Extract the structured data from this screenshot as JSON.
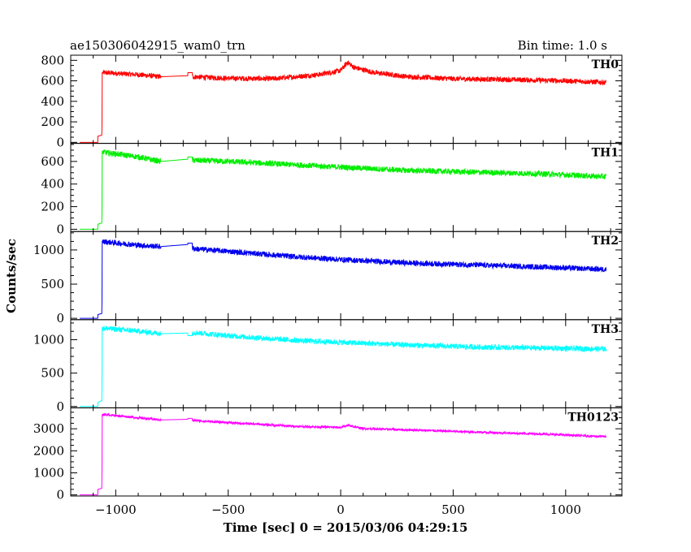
{
  "header": {
    "title": "ae150306042915_wam0_trn",
    "bin_time": "Bin time: 1.0 s"
  },
  "axes": {
    "xlabel": "Time [sec] 0 = 2015/03/06 04:29:15",
    "ylabel": "Counts/sec"
  },
  "chart_data": {
    "type": "line",
    "title": "ae150306042915_wam0_trn",
    "xlabel": "Time [sec] 0 = 2015/03/06 04:29:15",
    "ylabel": "Counts/sec",
    "xlim": [
      -1200,
      1250
    ],
    "xticks": [
      -1000,
      -500,
      0,
      500,
      1000
    ],
    "grid": false,
    "series": [
      {
        "name": "TH0",
        "color": "#ff0000",
        "ylim": [
          -10,
          850
        ],
        "yticks": [
          0,
          200,
          400,
          600,
          800
        ],
        "noise": 25,
        "points": [
          [
            -1160,
            0
          ],
          [
            -1080,
            0
          ],
          [
            -1079,
            60
          ],
          [
            -1062,
            70
          ],
          [
            -1061,
            170
          ],
          [
            -1060,
            680
          ],
          [
            -1050,
            680
          ],
          [
            -900,
            660
          ],
          [
            -800,
            640
          ],
          [
            -799,
            640
          ],
          [
            -680,
            650
          ],
          [
            -679,
            680
          ],
          [
            -660,
            680
          ],
          [
            -659,
            640
          ],
          [
            -500,
            625
          ],
          [
            -300,
            620
          ],
          [
            -100,
            660
          ],
          [
            0,
            700
          ],
          [
            30,
            780
          ],
          [
            60,
            730
          ],
          [
            150,
            680
          ],
          [
            300,
            640
          ],
          [
            500,
            620
          ],
          [
            800,
            610
          ],
          [
            1000,
            600
          ],
          [
            1180,
            585
          ]
        ],
        "gaps": [
          [
            -800,
            -659
          ]
        ]
      },
      {
        "name": "TH1",
        "color": "#00ee00",
        "ylim": [
          -20,
          760
        ],
        "yticks": [
          0,
          200,
          400,
          600
        ],
        "noise": 25,
        "points": [
          [
            -1160,
            0
          ],
          [
            -1080,
            0
          ],
          [
            -1079,
            45
          ],
          [
            -1062,
            55
          ],
          [
            -1061,
            160
          ],
          [
            -1060,
            690
          ],
          [
            -1050,
            680
          ],
          [
            -900,
            640
          ],
          [
            -800,
            600
          ],
          [
            -799,
            600
          ],
          [
            -680,
            620
          ],
          [
            -679,
            640
          ],
          [
            -660,
            640
          ],
          [
            -659,
            610
          ],
          [
            -500,
            600
          ],
          [
            -200,
            570
          ],
          [
            0,
            550
          ],
          [
            300,
            520
          ],
          [
            600,
            505
          ],
          [
            900,
            490
          ],
          [
            1180,
            465
          ]
        ],
        "gaps": [
          [
            -800,
            -659
          ]
        ]
      },
      {
        "name": "TH2",
        "color": "#0000ee",
        "ylim": [
          -20,
          1270
        ],
        "yticks": [
          0,
          500,
          1000
        ],
        "noise": 40,
        "points": [
          [
            -1160,
            0
          ],
          [
            -1080,
            0
          ],
          [
            -1079,
            55
          ],
          [
            -1062,
            70
          ],
          [
            -1061,
            260
          ],
          [
            -1060,
            1130
          ],
          [
            -1050,
            1120
          ],
          [
            -900,
            1070
          ],
          [
            -800,
            1050
          ],
          [
            -799,
            1050
          ],
          [
            -680,
            1080
          ],
          [
            -679,
            1100
          ],
          [
            -660,
            1100
          ],
          [
            -659,
            1020
          ],
          [
            -500,
            980
          ],
          [
            -200,
            900
          ],
          [
            0,
            860
          ],
          [
            300,
            810
          ],
          [
            600,
            780
          ],
          [
            900,
            750
          ],
          [
            1180,
            715
          ]
        ],
        "gaps": [
          [
            -800,
            -659
          ]
        ]
      },
      {
        "name": "TH3",
        "color": "#00ffff",
        "ylim": [
          -20,
          1300
        ],
        "yticks": [
          0,
          500,
          1000
        ],
        "noise": 40,
        "points": [
          [
            -1160,
            0
          ],
          [
            -1080,
            0
          ],
          [
            -1079,
            60
          ],
          [
            -1062,
            90
          ],
          [
            -1061,
            280
          ],
          [
            -1060,
            1180
          ],
          [
            -1050,
            1170
          ],
          [
            -900,
            1130
          ],
          [
            -800,
            1090
          ],
          [
            -799,
            1090
          ],
          [
            -680,
            1100
          ],
          [
            -679,
            1060
          ],
          [
            -660,
            1060
          ],
          [
            -659,
            1110
          ],
          [
            -500,
            1060
          ],
          [
            -200,
            990
          ],
          [
            0,
            960
          ],
          [
            300,
            920
          ],
          [
            600,
            890
          ],
          [
            900,
            875
          ],
          [
            1180,
            860
          ]
        ],
        "gaps": [
          [
            -800,
            -659
          ]
        ]
      },
      {
        "name": "TH0123",
        "color": "#ff00ff",
        "ylim": [
          -50,
          3950
        ],
        "yticks": [
          0,
          1000,
          2000,
          3000
        ],
        "noise": 50,
        "points": [
          [
            -1160,
            0
          ],
          [
            -1080,
            0
          ],
          [
            -1079,
            250
          ],
          [
            -1062,
            300
          ],
          [
            -1061,
            1100
          ],
          [
            -1060,
            3650
          ],
          [
            -1050,
            3650
          ],
          [
            -900,
            3500
          ],
          [
            -800,
            3400
          ],
          [
            -799,
            3400
          ],
          [
            -680,
            3430
          ],
          [
            -679,
            3470
          ],
          [
            -660,
            3470
          ],
          [
            -659,
            3380
          ],
          [
            -500,
            3280
          ],
          [
            -200,
            3110
          ],
          [
            0,
            3060
          ],
          [
            30,
            3150
          ],
          [
            100,
            3010
          ],
          [
            300,
            2950
          ],
          [
            600,
            2850
          ],
          [
            900,
            2760
          ],
          [
            1180,
            2640
          ]
        ],
        "gaps": [
          [
            -800,
            -659
          ]
        ]
      }
    ]
  }
}
